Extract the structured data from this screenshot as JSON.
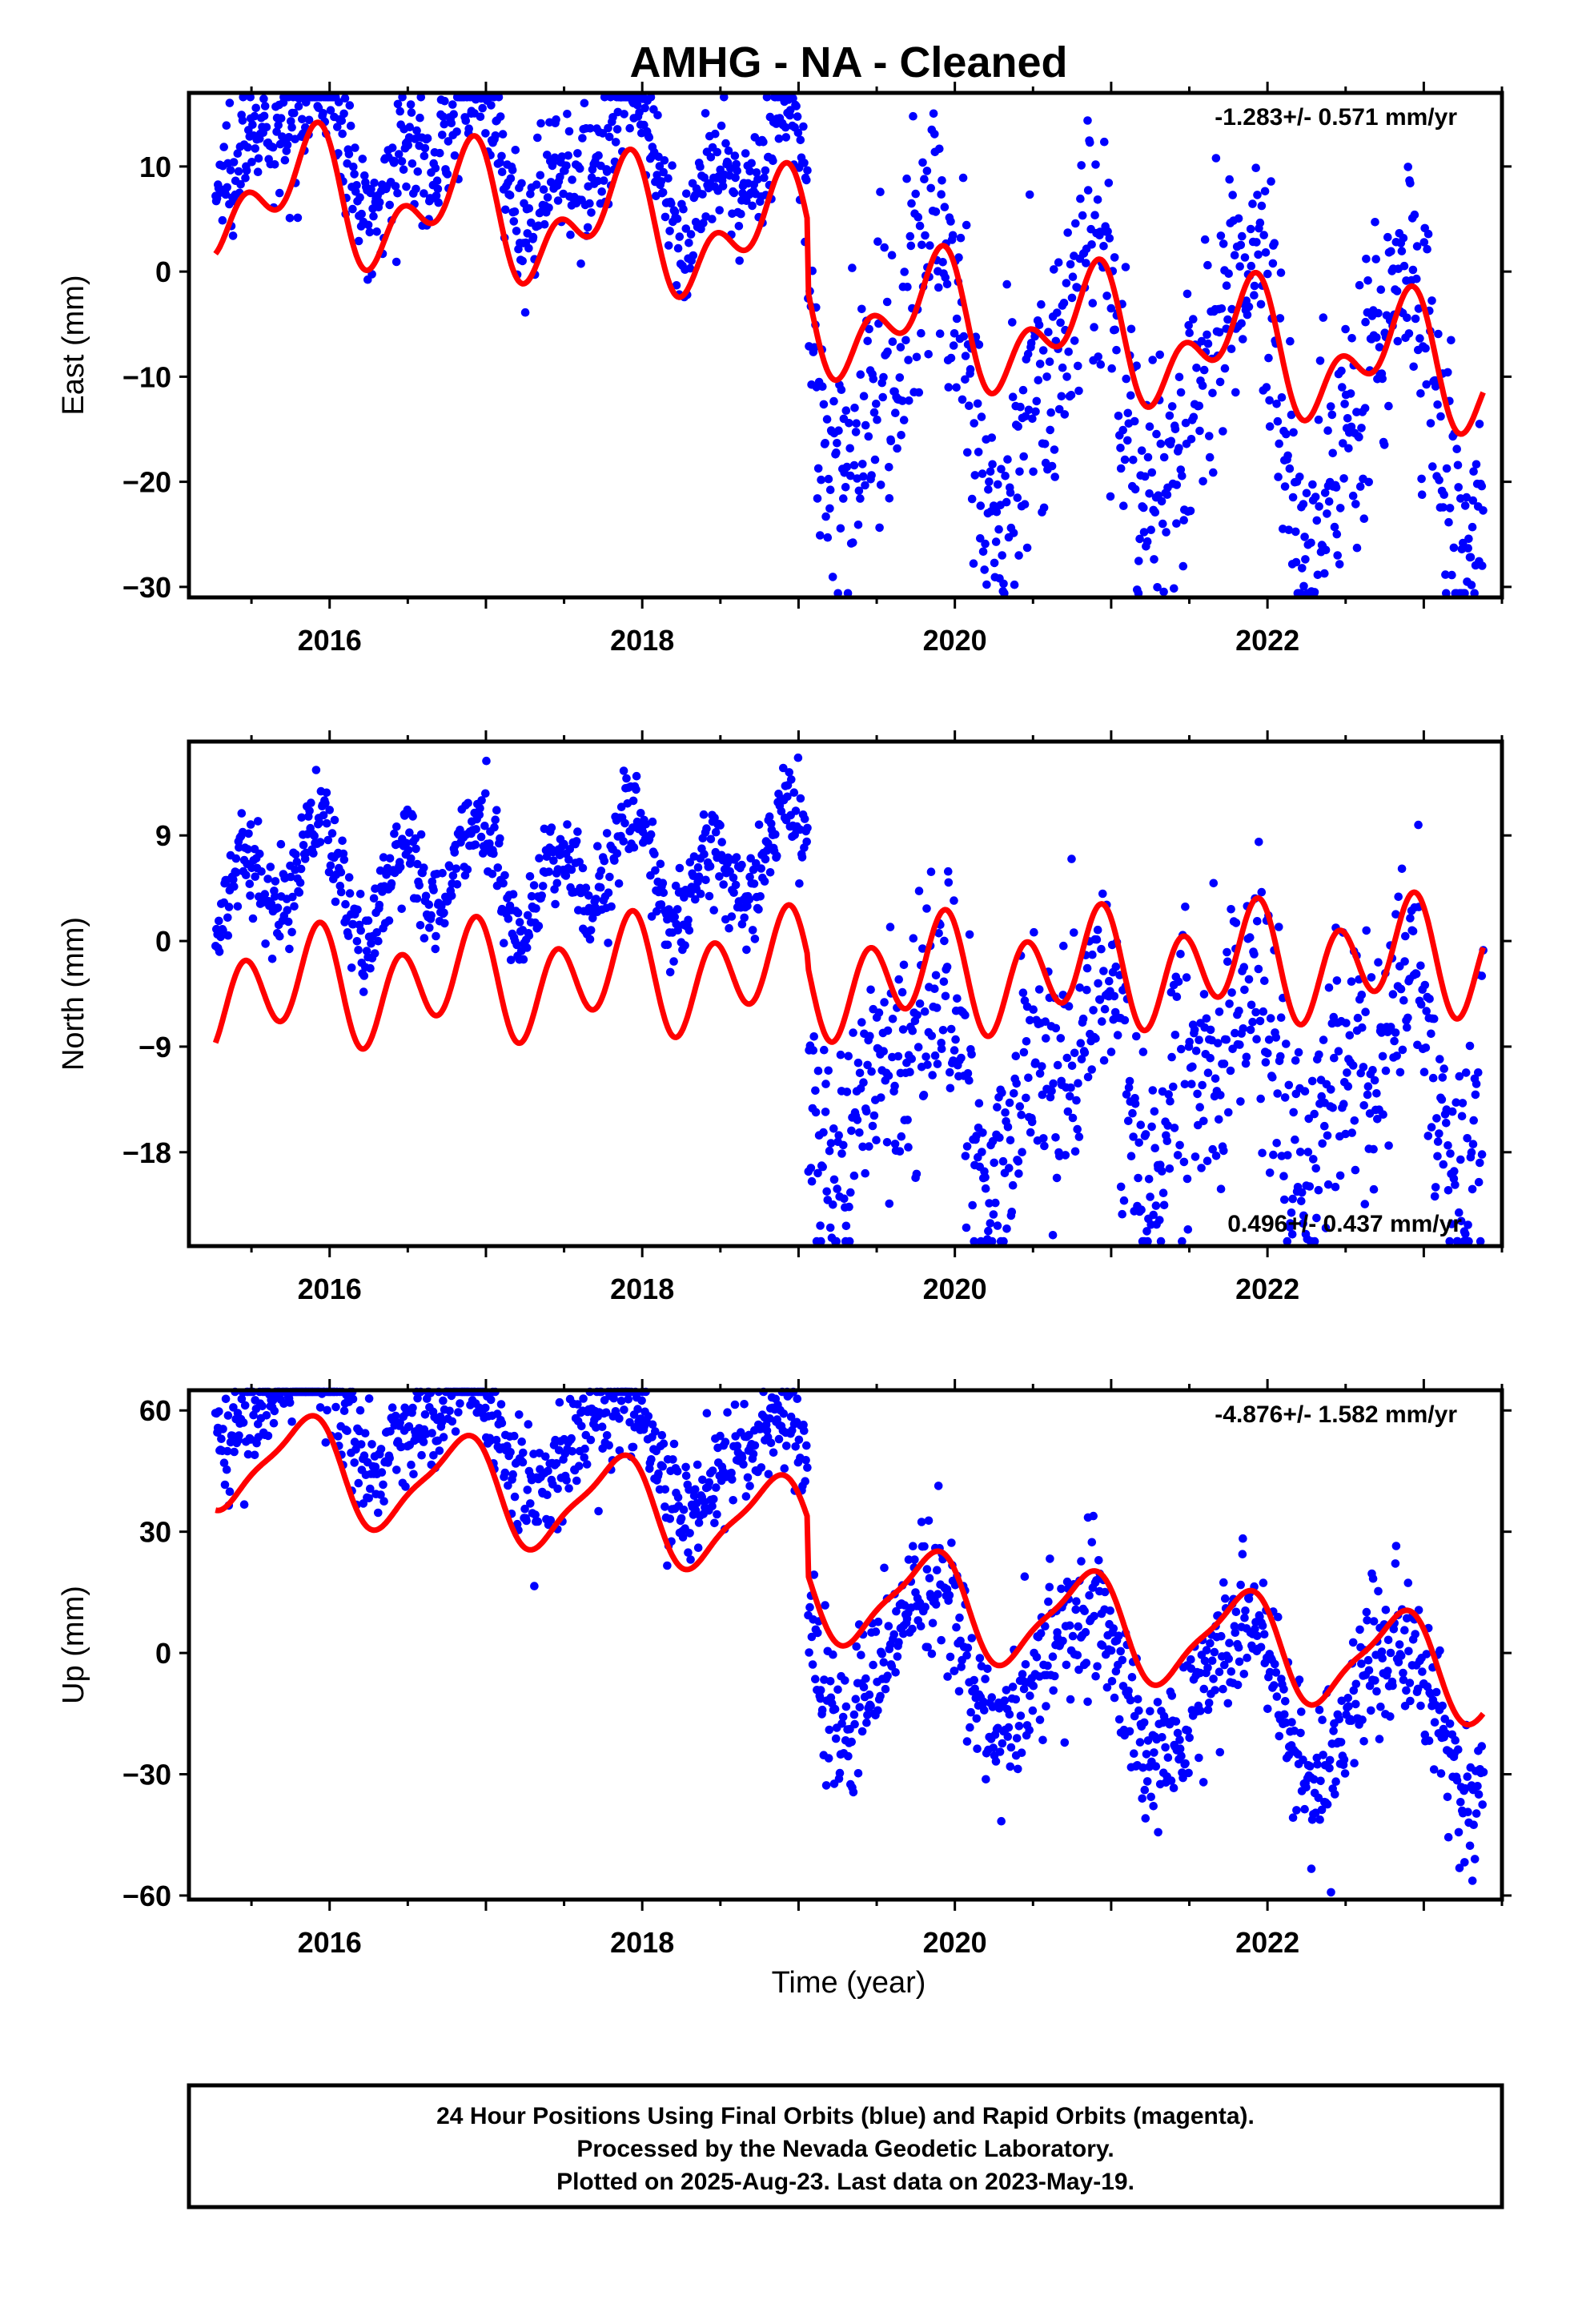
{
  "title": "AMHG  - NA - Cleaned",
  "xlabel": "Time (year)",
  "x_tick_labels": [
    "2016",
    "2018",
    "2020",
    "2022"
  ],
  "footer": {
    "line1": "24 Hour Positions Using Final Orbits (blue) and Rapid Orbits (magenta).",
    "line2": "Processed by the Nevada Geodetic Laboratory.",
    "line3": "Plotted on 2025-Aug-23. Last data on 2023-May-19."
  },
  "colors": {
    "final_orbits": "#0000ff",
    "model": "#ff0000",
    "frame": "#000000"
  },
  "chart_data": [
    {
      "type": "scatter",
      "panel": "east",
      "ylabel": "East (mm)",
      "rate_text": "-1.283+/- 0.571 mm/yr",
      "rate_position": "top-right",
      "xlim": [
        2015.1,
        2023.5
      ],
      "ylim": [
        -31,
        17
      ],
      "x_ticks": [
        2016,
        2018,
        2020,
        2022
      ],
      "y_ticks": [
        -30,
        -20,
        -10,
        0,
        10
      ],
      "y_tick_labels": [
        "−30",
        "−20",
        "−10",
        "0",
        "10"
      ],
      "grid": false,
      "x_start": 2015.27,
      "x_end": 2023.38,
      "step_year": 2019.06,
      "model": {
        "series": "red fitted model",
        "offset_before": 2.6,
        "offset_after": -4.0,
        "rate_mm_per_yr": -1.283,
        "annual_amp": 4.5,
        "annual_phase": 2.5,
        "semiannual_amp": 3.4,
        "semiannual_phase": 2.2
      },
      "points_band": {
        "before_shift": 5.5,
        "before_spread": 3.0,
        "after_shift": -4.0,
        "after_spread": 6.5,
        "after_extra_amp": 7.0,
        "extra_phase": 0.2
      }
    },
    {
      "type": "scatter",
      "panel": "north",
      "ylabel": "North (mm)",
      "rate_text": "0.496+/- 0.437 mm/yr",
      "rate_position": "bottom-right",
      "xlim": [
        2015.1,
        2023.5
      ],
      "ylim": [
        -26,
        17
      ],
      "x_ticks": [
        2016,
        2018,
        2020,
        2022
      ],
      "y_ticks": [
        -18,
        -9,
        0,
        9
      ],
      "y_tick_labels": [
        "−18",
        "−9",
        "0",
        "9"
      ],
      "grid": false,
      "x_start": 2015.27,
      "x_end": 2023.38,
      "step_year": 2019.06,
      "model": {
        "series": "red fitted model",
        "offset_before": -2.3,
        "offset_after": -3.2,
        "rate_mm_per_yr": 0.496,
        "annual_amp": 2.0,
        "annual_phase": 2.6,
        "semiannual_amp": 4.0,
        "semiannual_phase": 2.2
      },
      "points_band": {
        "before_shift": 9.0,
        "before_spread": 2.0,
        "after_shift": -9.0,
        "after_spread": 5.5,
        "after_extra_amp": 4.0,
        "extra_phase": 0.4
      }
    },
    {
      "type": "scatter",
      "panel": "up",
      "ylabel": "Up (mm)",
      "rate_text": "-4.876+/- 1.582 mm/yr",
      "rate_position": "top-right",
      "xlim": [
        2015.1,
        2023.5
      ],
      "ylim": [
        -61,
        65
      ],
      "x_ticks": [
        2016,
        2018,
        2020,
        2022
      ],
      "y_ticks": [
        -60,
        -30,
        0,
        30,
        60
      ],
      "y_tick_labels": [
        "−60",
        "−30",
        "0",
        "30",
        "60"
      ],
      "grid": false,
      "x_start": 2015.27,
      "x_end": 2023.38,
      "step_year": 2019.06,
      "model": {
        "series": "red fitted model",
        "offset_before": 29.0,
        "offset_after": 15.0,
        "rate_mm_per_yr": -4.876,
        "annual_amp": 12.0,
        "annual_phase": 2.6,
        "semiannual_amp": 3.0,
        "semiannual_phase": 2.0
      },
      "points_band": {
        "before_shift": 15.0,
        "before_spread": 7.0,
        "after_shift": -12.0,
        "after_spread": 9.0,
        "after_extra_amp": 6.0,
        "extra_phase": 0.3
      }
    }
  ]
}
